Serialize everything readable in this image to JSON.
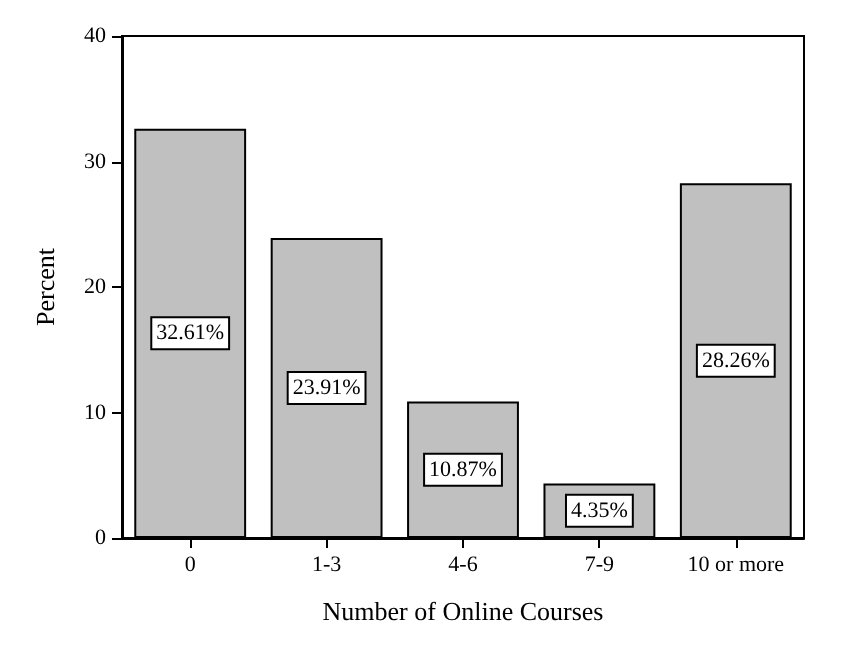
{
  "chart_data": {
    "type": "bar",
    "xlabel": "Number of Online Courses",
    "ylabel": "Percent",
    "categories": [
      "0",
      "1-3",
      "4-6",
      "7-9",
      "10 or more"
    ],
    "values": [
      32.61,
      23.91,
      10.87,
      4.35,
      28.26
    ],
    "value_labels": [
      "32.61%",
      "23.91%",
      "10.87%",
      "4.35%",
      "28.26%"
    ],
    "color": "#c0c0c0",
    "ylim": [
      0,
      40
    ],
    "yticks": [
      0,
      10,
      20,
      30,
      40
    ],
    "grid": false
  }
}
